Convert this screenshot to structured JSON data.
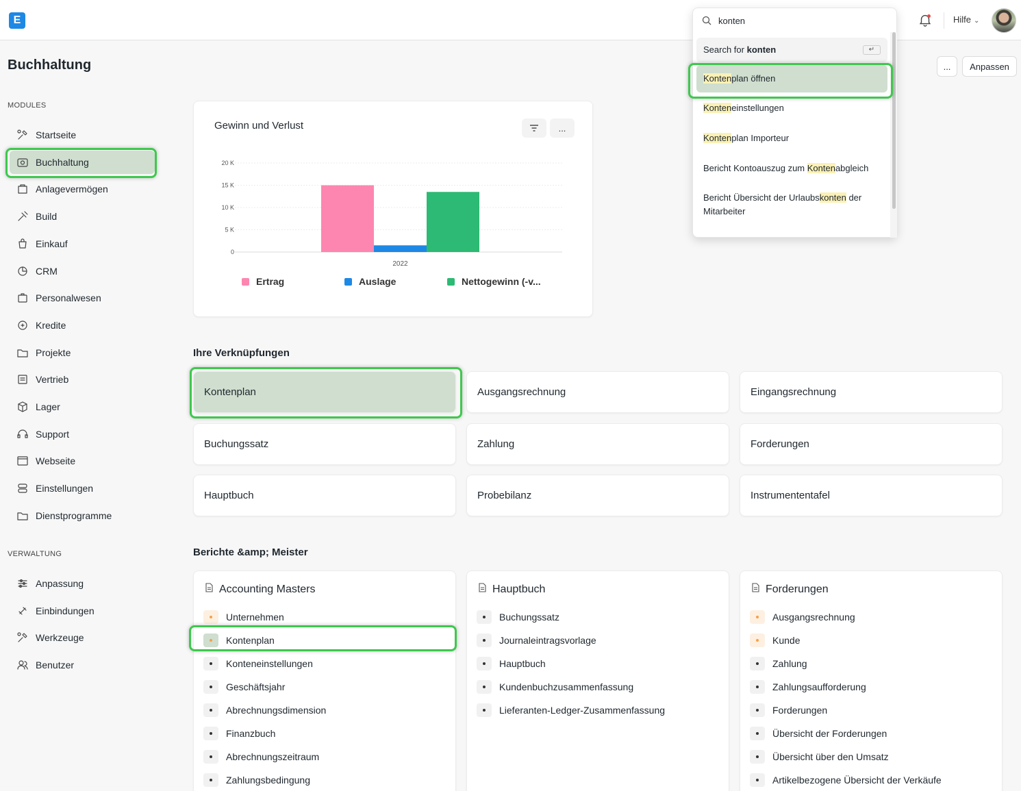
{
  "app": {
    "logo_letter": "E"
  },
  "navbar": {
    "help_label": "Hilfe"
  },
  "page": {
    "title": "Buchhaltung",
    "more_label": "...",
    "customize_label": "Anpassen"
  },
  "sidebar": {
    "modules_label": "MODULES",
    "modules": [
      {
        "label": "Startseite",
        "icon": "tools-icon"
      },
      {
        "label": "Buchhaltung",
        "icon": "accounting-icon",
        "active": true
      },
      {
        "label": "Anlagevermögen",
        "icon": "assets-icon"
      },
      {
        "label": "Build",
        "icon": "build-icon"
      },
      {
        "label": "Einkauf",
        "icon": "purchase-icon"
      },
      {
        "label": "CRM",
        "icon": "crm-icon"
      },
      {
        "label": "Personalwesen",
        "icon": "hr-icon"
      },
      {
        "label": "Kredite",
        "icon": "loan-icon"
      },
      {
        "label": "Projekte",
        "icon": "folder-icon"
      },
      {
        "label": "Vertrieb",
        "icon": "sales-icon"
      },
      {
        "label": "Lager",
        "icon": "stock-icon"
      },
      {
        "label": "Support",
        "icon": "headset-icon"
      },
      {
        "label": "Webseite",
        "icon": "website-icon"
      },
      {
        "label": "Einstellungen",
        "icon": "settings-icon"
      },
      {
        "label": "Dienstprogramme",
        "icon": "folder-icon"
      }
    ],
    "admin_label": "VERWALTUNG",
    "admin": [
      {
        "label": "Anpassung",
        "icon": "sliders-icon"
      },
      {
        "label": "Einbindungen",
        "icon": "integrations-icon"
      },
      {
        "label": "Werkzeuge",
        "icon": "tools-icon"
      },
      {
        "label": "Benutzer",
        "icon": "users-icon"
      }
    ]
  },
  "chart_card": {
    "title": "Gewinn und Verlust",
    "filter_label": "filter",
    "more_label": "..."
  },
  "chart_data": {
    "type": "bar",
    "title": "Gewinn und Verlust",
    "categories": [
      "2022"
    ],
    "series": [
      {
        "name": "Ertrag",
        "values": [
          15000
        ],
        "color": "#fd86b0"
      },
      {
        "name": "Auslage",
        "values": [
          1500
        ],
        "color": "#1e88e5"
      },
      {
        "name": "Nettogewinn (-v...",
        "values": [
          13500
        ],
        "color": "#2dba74"
      }
    ],
    "y_ticks": [
      "0",
      "5 K",
      "10 K",
      "15 K",
      "20 K"
    ],
    "ylim": [
      0,
      20000
    ],
    "grid": true,
    "legend": "bottom"
  },
  "shortcuts": {
    "heading": "Ihre Verknüpfungen",
    "items": [
      "Kontenplan",
      "Ausgangsrechnung",
      "Eingangsrechnung",
      "Buchungssatz",
      "Zahlung",
      "Forderungen",
      "Hauptbuch",
      "Probebilanz",
      "Instrumententafel"
    ]
  },
  "reports": {
    "heading": "Berichte &amp; Meister",
    "cards": [
      {
        "title": "Accounting Masters",
        "items": [
          {
            "label": "Unternehmen",
            "orange": true
          },
          {
            "label": "Kontenplan",
            "orange": true
          },
          {
            "label": "Konteneinstellungen"
          },
          {
            "label": "Geschäftsjahr"
          },
          {
            "label": "Abrechnungsdimension"
          },
          {
            "label": "Finanzbuch"
          },
          {
            "label": "Abrechnungszeitraum"
          },
          {
            "label": "Zahlungsbedingung"
          }
        ]
      },
      {
        "title": "Hauptbuch",
        "items": [
          {
            "label": "Buchungssatz"
          },
          {
            "label": "Journaleintragsvorlage"
          },
          {
            "label": "Hauptbuch"
          },
          {
            "label": "Kundenbuchzusammenfassung"
          },
          {
            "label": "Lieferanten-Ledger-Zusammenfassung"
          }
        ]
      },
      {
        "title": "Forderungen",
        "items": [
          {
            "label": "Ausgangsrechnung",
            "orange": true
          },
          {
            "label": "Kunde",
            "orange": true
          },
          {
            "label": "Zahlung"
          },
          {
            "label": "Zahlungsaufforderung"
          },
          {
            "label": "Forderungen"
          },
          {
            "label": "Übersicht der Forderungen"
          },
          {
            "label": "Übersicht über den Umsatz"
          },
          {
            "label": "Artikelbezogene Übersicht der Verkäufe"
          }
        ]
      }
    ]
  },
  "search": {
    "query": "konten",
    "search_for_prefix": "Search for ",
    "search_for_term": "konten",
    "enter_key": "↵",
    "results": [
      {
        "mark": "Konten",
        "rest": "plan öffnen"
      },
      {
        "mark": "Konten",
        "rest": "einstellungen"
      },
      {
        "mark": "Konten",
        "rest": "plan Importeur"
      },
      {
        "pre": "Bericht Kontoauszug zum ",
        "mark": "Konten",
        "rest": "abgleich"
      },
      {
        "pre": "Bericht Übersicht der Urlaubs",
        "mark": "konten",
        "rest": " der Mitarbeiter"
      }
    ]
  }
}
